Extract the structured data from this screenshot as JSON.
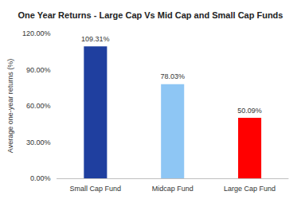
{
  "chart_data": {
    "type": "bar",
    "title": "One Year Returns - Large Cap Vs Mid Cap and Small Cap Funds",
    "y_label": "Average one-year returns (%)",
    "categories": [
      "Small Cap Fund",
      "Midcap Fund",
      "Large Cap Fund"
    ],
    "values": [
      109.31,
      78.03,
      50.09
    ],
    "value_labels": [
      "109.31%",
      "78.03%",
      "50.09%"
    ],
    "colors": [
      "#1f3f9f",
      "#8ec6f4",
      "#ff0000"
    ],
    "ylim": [
      0,
      120
    ],
    "yticks": [
      {
        "value": 0,
        "label": "0.00%"
      },
      {
        "value": 30,
        "label": "30.00%"
      },
      {
        "value": 60,
        "label": "60.00%"
      },
      {
        "value": 90,
        "label": "90.00%"
      },
      {
        "value": 120,
        "label": "120.00%"
      }
    ],
    "grid": false,
    "data_labels": true
  }
}
